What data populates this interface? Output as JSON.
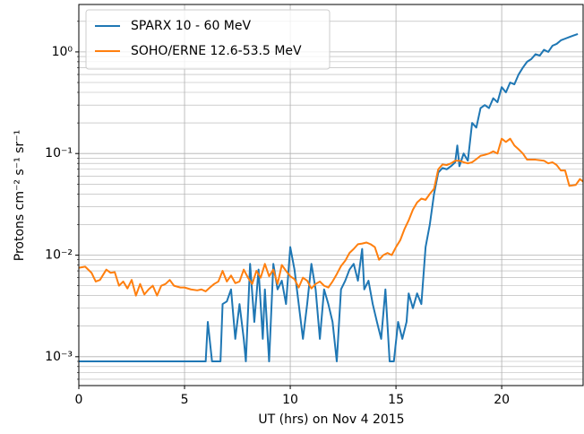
{
  "chart_data": {
    "type": "line",
    "xlabel": "UT (hrs) on Nov 4 2015",
    "ylabel": "Protons cm⁻² s⁻¹ sr⁻¹",
    "xlim": [
      0,
      23.85
    ],
    "xticks": [
      0,
      5,
      10,
      15,
      20
    ],
    "ylim": [
      0.00052,
      2.93
    ],
    "yscale": "log",
    "yticks": [
      {
        "value": 0.001,
        "label": "10⁻³"
      },
      {
        "value": 0.01,
        "label": "10⁻²"
      },
      {
        "value": 0.1,
        "label": "10⁻¹"
      },
      {
        "value": 1,
        "label": "10⁰"
      }
    ],
    "yminorticks": [
      0.0006,
      0.0007,
      0.0008,
      0.0009,
      0.002,
      0.003,
      0.004,
      0.005,
      0.006,
      0.007,
      0.008,
      0.009,
      0.02,
      0.03,
      0.04,
      0.05,
      0.06,
      0.07,
      0.08,
      0.09,
      0.2,
      0.3,
      0.4,
      0.5,
      0.6,
      0.7,
      0.8,
      0.9,
      2
    ],
    "grid": true,
    "legend": "upper-left",
    "series": [
      {
        "name": "SPARX 10 - 60 MeV",
        "color": "#1f77b4",
        "x": [
          0,
          6.0,
          6.1,
          6.3,
          6.7,
          6.8,
          7.0,
          7.2,
          7.4,
          7.6,
          7.8,
          7.9,
          8.1,
          8.3,
          8.5,
          8.7,
          8.8,
          9.0,
          9.2,
          9.4,
          9.6,
          9.8,
          10.0,
          10.2,
          10.4,
          10.6,
          10.8,
          11.0,
          11.2,
          11.4,
          11.6,
          11.8,
          12.0,
          12.2,
          12.4,
          12.6,
          12.8,
          13.0,
          13.2,
          13.4,
          13.5,
          13.7,
          13.9,
          14.1,
          14.3,
          14.5,
          14.7,
          14.9,
          15.1,
          15.3,
          15.5,
          15.6,
          15.8,
          16.0,
          16.2,
          16.4,
          16.6,
          16.8,
          17.0,
          17.2,
          17.4,
          17.6,
          17.8,
          17.9,
          18.0,
          18.2,
          18.4,
          18.6,
          18.8,
          19.0,
          19.2,
          19.4,
          19.6,
          19.8,
          20.0,
          20.2,
          20.4,
          20.6,
          20.8,
          21.0,
          21.2,
          21.4,
          21.6,
          21.8,
          22.0,
          22.2,
          22.4,
          22.6,
          22.8,
          23.0,
          23.2,
          23.4,
          23.6
        ],
        "values": [
          0.0009,
          0.0009,
          0.0022,
          0.0009,
          0.0009,
          0.0033,
          0.0035,
          0.0046,
          0.0015,
          0.0033,
          0.0015,
          0.0009,
          0.0082,
          0.0022,
          0.0072,
          0.0015,
          0.0046,
          0.0009,
          0.0082,
          0.0046,
          0.0056,
          0.0033,
          0.012,
          0.0072,
          0.0033,
          0.0015,
          0.0033,
          0.0082,
          0.0046,
          0.0015,
          0.0046,
          0.0033,
          0.0022,
          0.0009,
          0.0046,
          0.0056,
          0.0072,
          0.0082,
          0.0056,
          0.0115,
          0.0046,
          0.0056,
          0.0033,
          0.0022,
          0.0015,
          0.0046,
          0.0009,
          0.0009,
          0.0022,
          0.0015,
          0.0022,
          0.0042,
          0.003,
          0.0042,
          0.0033,
          0.012,
          0.02,
          0.04,
          0.065,
          0.072,
          0.07,
          0.075,
          0.082,
          0.12,
          0.075,
          0.1,
          0.085,
          0.2,
          0.18,
          0.28,
          0.3,
          0.28,
          0.35,
          0.32,
          0.45,
          0.4,
          0.5,
          0.48,
          0.6,
          0.7,
          0.8,
          0.85,
          0.95,
          0.92,
          1.05,
          1.0,
          1.15,
          1.2,
          1.3,
          1.35,
          1.4,
          1.45,
          1.5
        ]
      },
      {
        "name": "SOHO/ERNE 12.6-53.5 MeV",
        "color": "#ff7f0e",
        "x": [
          0,
          0.3,
          0.6,
          0.8,
          1.0,
          1.3,
          1.5,
          1.7,
          1.9,
          2.1,
          2.3,
          2.5,
          2.7,
          2.9,
          3.1,
          3.3,
          3.5,
          3.7,
          3.9,
          4.1,
          4.3,
          4.5,
          4.8,
          5.0,
          5.3,
          5.6,
          5.8,
          6.0,
          6.2,
          6.4,
          6.6,
          6.8,
          7.0,
          7.2,
          7.4,
          7.6,
          7.8,
          8.0,
          8.2,
          8.4,
          8.6,
          8.8,
          9.0,
          9.2,
          9.4,
          9.6,
          9.8,
          10.0,
          10.2,
          10.4,
          10.6,
          10.8,
          11.0,
          11.2,
          11.4,
          11.6,
          11.8,
          12.0,
          12.2,
          12.4,
          12.6,
          12.8,
          13.0,
          13.2,
          13.4,
          13.6,
          13.8,
          14.0,
          14.2,
          14.4,
          14.6,
          14.8,
          15.0,
          15.2,
          15.4,
          15.6,
          15.8,
          16.0,
          16.2,
          16.4,
          16.6,
          16.8,
          17.0,
          17.2,
          17.4,
          17.6,
          17.8,
          18.0,
          18.2,
          18.4,
          18.6,
          18.8,
          19.0,
          19.2,
          19.4,
          19.6,
          19.8,
          20.0,
          20.2,
          20.4,
          20.6,
          20.8,
          21.0,
          21.2,
          21.6,
          22.0,
          22.2,
          22.4,
          22.6,
          22.8,
          23.0,
          23.2,
          23.5,
          23.7,
          23.85
        ],
        "values": [
          0.0075,
          0.0077,
          0.0067,
          0.0055,
          0.0057,
          0.0072,
          0.0067,
          0.0068,
          0.005,
          0.0055,
          0.0047,
          0.0057,
          0.004,
          0.0052,
          0.0041,
          0.0046,
          0.005,
          0.004,
          0.005,
          0.0052,
          0.0057,
          0.005,
          0.0048,
          0.0048,
          0.0046,
          0.0045,
          0.0046,
          0.0044,
          0.0048,
          0.0052,
          0.0055,
          0.007,
          0.0055,
          0.0063,
          0.0053,
          0.0055,
          0.0072,
          0.006,
          0.0052,
          0.007,
          0.006,
          0.0082,
          0.0062,
          0.0072,
          0.0052,
          0.008,
          0.007,
          0.0062,
          0.0058,
          0.0048,
          0.006,
          0.0056,
          0.0047,
          0.0052,
          0.0055,
          0.005,
          0.0048,
          0.0055,
          0.0065,
          0.0078,
          0.0088,
          0.0105,
          0.0115,
          0.0128,
          0.013,
          0.0133,
          0.0128,
          0.012,
          0.009,
          0.01,
          0.0105,
          0.01,
          0.012,
          0.014,
          0.018,
          0.022,
          0.028,
          0.033,
          0.036,
          0.035,
          0.04,
          0.045,
          0.07,
          0.078,
          0.077,
          0.08,
          0.085,
          0.085,
          0.082,
          0.08,
          0.082,
          0.088,
          0.095,
          0.097,
          0.1,
          0.105,
          0.1,
          0.14,
          0.13,
          0.14,
          0.12,
          0.11,
          0.1,
          0.087,
          0.087,
          0.085,
          0.08,
          0.082,
          0.077,
          0.068,
          0.068,
          0.048,
          0.049,
          0.056,
          0.053
        ]
      }
    ]
  }
}
